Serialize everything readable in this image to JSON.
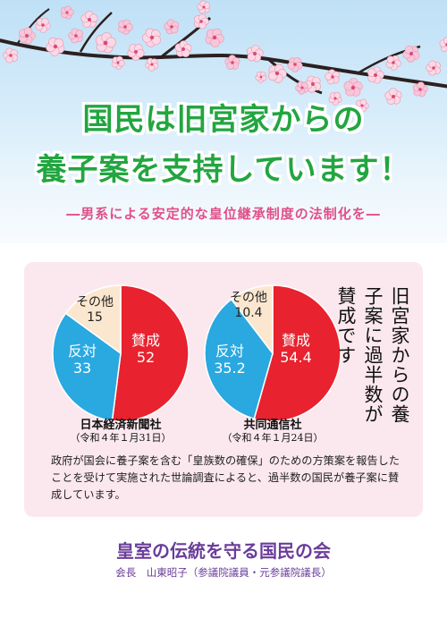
{
  "headline": {
    "line1": "国民は旧宮家からの",
    "line2": "養子案を支持しています！"
  },
  "subtitle": "―男系による安定的な皇位継承制度の法制化を―",
  "colors": {
    "headline": "#22a640",
    "subtitle": "#e0508a",
    "support": "#e8222e",
    "oppose": "#2aa8e0",
    "other": "#fbe7cf",
    "card": "#fbe8ee",
    "org": "#6a3d9a"
  },
  "chart_data": [
    {
      "type": "pie",
      "title": "日本経済新聞社",
      "date": "（令和４年１月31日）",
      "slices": [
        {
          "label": "賛成",
          "value": 52
        },
        {
          "label": "反対",
          "value": 33
        },
        {
          "label": "その他",
          "value": 15
        }
      ]
    },
    {
      "type": "pie",
      "title": "共同通信社",
      "date": "（令和４年１月24日）",
      "slices": [
        {
          "label": "賛成",
          "value": 54.4
        },
        {
          "label": "反対",
          "value": 35.2
        },
        {
          "label": "その他",
          "value": 10.4
        }
      ]
    }
  ],
  "vertical_text": "旧宮家からの養子案に過半数が賛成です",
  "body_text": "政府が国会に養子案を含む「皇族数の確保」のための方策案を報告したことを受けて実施された世論調査によると、過半数の国民が養子案に賛成しています。",
  "organization": "皇室の伝統を守る国民の会",
  "president": "会長　山東昭子（参議院議員・元参議院議長）"
}
